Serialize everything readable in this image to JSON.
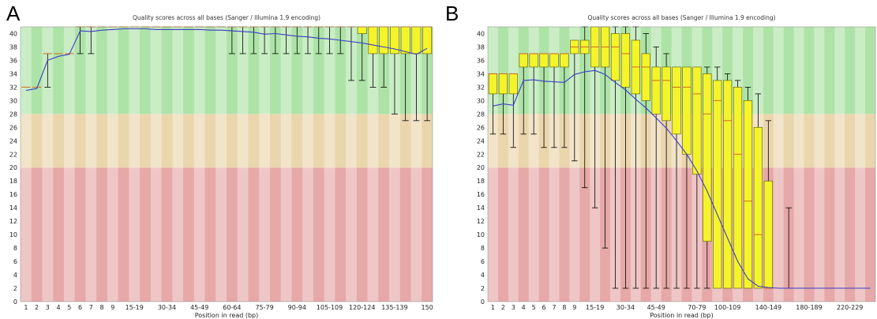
{
  "panels": [
    {
      "letter": "A",
      "chart_data": {
        "type": "box",
        "title": "Quality scores across all bases (Sanger / Illumina 1.9 encoding)",
        "xlabel": "Position in read (bp)",
        "ylabel": "",
        "ylim": [
          0,
          41
        ],
        "yticks": [
          0,
          2,
          4,
          6,
          8,
          10,
          12,
          14,
          16,
          18,
          20,
          22,
          24,
          26,
          28,
          30,
          32,
          34,
          36,
          38,
          40
        ],
        "quality_bands": [
          {
            "name": "poor",
            "from": 0,
            "to": 20,
            "color": "#e6a8a8"
          },
          {
            "name": "reasonable",
            "from": 20,
            "to": 28,
            "color": "#ead6ad"
          },
          {
            "name": "good",
            "from": 28,
            "to": 41,
            "color": "#aee3a8"
          }
        ],
        "x_tick_labels": [
          "1",
          "2",
          "3",
          "4",
          "5",
          "6",
          "7",
          "8",
          "9",
          "15-19",
          "30-34",
          "45-49",
          "60-64",
          "75-79",
          "90-94",
          "105-109",
          "120-124",
          "135-139",
          "150"
        ],
        "categories": [
          "1",
          "2",
          "3",
          "4",
          "5",
          "6",
          "7",
          "8",
          "9",
          "10-14",
          "15-19",
          "20-24",
          "25-29",
          "30-34",
          "35-39",
          "40-44",
          "45-49",
          "50-54",
          "55-59",
          "60-64",
          "65-69",
          "70-74",
          "75-79",
          "80-84",
          "85-89",
          "90-94",
          "95-99",
          "100-104",
          "105-109",
          "110-114",
          "115-119",
          "120-124",
          "125-129",
          "130-134",
          "135-139",
          "140-144",
          "145-149",
          "150"
        ],
        "mean": [
          31.5,
          31.8,
          36.0,
          36.6,
          36.9,
          40.4,
          40.3,
          40.5,
          40.6,
          40.7,
          40.7,
          40.7,
          40.6,
          40.6,
          40.6,
          40.6,
          40.6,
          40.5,
          40.5,
          40.4,
          40.3,
          40.2,
          39.9,
          40.0,
          39.8,
          39.6,
          39.5,
          39.3,
          39.2,
          39.0,
          38.8,
          38.6,
          38.3,
          38.0,
          37.7,
          37.3,
          36.9,
          37.8
        ],
        "q1": [
          32,
          32,
          37,
          37,
          37,
          41,
          41,
          41,
          41,
          41,
          41,
          41,
          41,
          41,
          41,
          41,
          41,
          41,
          41,
          41,
          41,
          41,
          41,
          41,
          41,
          41,
          41,
          41,
          41,
          41,
          41,
          40,
          37,
          37,
          37,
          37,
          37,
          37
        ],
        "median": [
          32,
          32,
          37,
          37,
          37,
          41,
          41,
          41,
          41,
          41,
          41,
          41,
          41,
          41,
          41,
          41,
          41,
          41,
          41,
          41,
          41,
          41,
          41,
          41,
          41,
          41,
          41,
          41,
          41,
          41,
          41,
          41,
          41,
          41,
          41,
          41,
          41,
          41
        ],
        "q3": [
          32,
          32,
          37,
          37,
          37,
          41,
          41,
          41,
          41,
          41,
          41,
          41,
          41,
          41,
          41,
          41,
          41,
          41,
          41,
          41,
          41,
          41,
          41,
          41,
          41,
          41,
          41,
          41,
          41,
          41,
          41,
          41,
          41,
          41,
          41,
          41,
          41,
          41
        ],
        "low": [
          32,
          32,
          32,
          37,
          37,
          37,
          37,
          41,
          41,
          41,
          41,
          41,
          41,
          41,
          41,
          41,
          41,
          41,
          41,
          37,
          37,
          37,
          37,
          37,
          37,
          37,
          37,
          37,
          37,
          37,
          33,
          33,
          32,
          32,
          28,
          27,
          27,
          27
        ],
        "high": [
          32,
          32,
          37,
          37,
          37,
          41,
          41,
          41,
          41,
          41,
          41,
          41,
          41,
          41,
          41,
          41,
          41,
          41,
          41,
          41,
          41,
          41,
          41,
          41,
          41,
          41,
          41,
          41,
          41,
          41,
          41,
          41,
          41,
          41,
          41,
          41,
          41,
          41
        ]
      }
    },
    {
      "letter": "B",
      "chart_data": {
        "type": "box",
        "title": "Quality scores across all bases (Sanger / Illumina 1.9 encoding)",
        "xlabel": "Position in read (bp)",
        "ylabel": "",
        "ylim": [
          0,
          41
        ],
        "yticks": [
          0,
          2,
          4,
          6,
          8,
          10,
          12,
          14,
          16,
          18,
          20,
          22,
          24,
          26,
          28,
          30,
          32,
          34,
          36,
          38,
          40
        ],
        "quality_bands": [
          {
            "name": "poor",
            "from": 0,
            "to": 20,
            "color": "#e6a8a8"
          },
          {
            "name": "reasonable",
            "from": 20,
            "to": 28,
            "color": "#ead6ad"
          },
          {
            "name": "good",
            "from": 28,
            "to": 41,
            "color": "#aee3a8"
          }
        ],
        "x_tick_labels": [
          "1",
          "2",
          "3",
          "4",
          "5",
          "6",
          "7",
          "8",
          "9",
          "15-19",
          "30-34",
          "45-49",
          "70-79",
          "100-109",
          "140-149",
          "180-189",
          "220-229"
        ],
        "categories": [
          "1",
          "2",
          "3",
          "4",
          "5",
          "6",
          "7",
          "8",
          "9",
          "10-14",
          "15-19",
          "20-24",
          "25-29",
          "30-34",
          "35-39",
          "40-44",
          "45-49",
          "50-54",
          "55-59",
          "60-69",
          "70-79",
          "80-89",
          "90-99",
          "100-109",
          "110-119",
          "120-129",
          "130-139",
          "140-149",
          "150-159",
          "160-169",
          "170-179",
          "180-189",
          "190-199",
          "200-209",
          "210-219",
          "220-229",
          "230-239",
          "240-251"
        ],
        "mean": [
          29.2,
          29.5,
          29.3,
          33.0,
          33.1,
          32.9,
          32.8,
          32.7,
          33.9,
          34.3,
          34.5,
          33.9,
          32.7,
          31.6,
          30.2,
          28.9,
          27.4,
          25.9,
          24.0,
          22.0,
          19.5,
          16.5,
          13.0,
          9.5,
          6.0,
          3.4,
          2.3,
          2.1,
          2.0,
          2.0,
          2.0,
          2.0,
          2.0,
          2.0,
          2.0,
          2.0,
          2.0,
          2.0
        ],
        "q1": [
          31,
          31,
          31,
          35,
          35,
          35,
          35,
          35,
          37,
          37,
          35,
          35,
          33,
          32,
          31,
          30,
          28,
          27,
          25,
          22,
          19,
          9,
          2,
          2,
          2,
          2,
          2,
          2,
          null,
          null,
          null,
          null,
          null,
          null,
          null,
          null,
          null,
          null
        ],
        "median": [
          34,
          34,
          34,
          37,
          37,
          37,
          37,
          37,
          38,
          38,
          38,
          38,
          38,
          37,
          35,
          35,
          33,
          33,
          32,
          32,
          31,
          28,
          30,
          27,
          22,
          15,
          10,
          2,
          null,
          null,
          null,
          null,
          null,
          null,
          null,
          null,
          null,
          null
        ],
        "q3": [
          34,
          34,
          34,
          37,
          37,
          37,
          37,
          37,
          39,
          39,
          41,
          41,
          40,
          40,
          39,
          37,
          35,
          35,
          35,
          35,
          35,
          34,
          33,
          33,
          32,
          30,
          26,
          18,
          null,
          null,
          null,
          null,
          null,
          null,
          null,
          null,
          null,
          null
        ],
        "low": [
          25,
          25,
          23,
          25,
          25,
          23,
          23,
          23,
          21,
          17,
          14,
          8,
          2,
          2,
          2,
          2,
          2,
          2,
          2,
          2,
          2,
          2,
          2,
          2,
          2,
          2,
          2,
          2,
          null,
          null,
          null,
          null,
          null,
          null,
          null,
          null,
          null,
          null
        ],
        "high": [
          34,
          34,
          34,
          37,
          37,
          37,
          37,
          37,
          39,
          41,
          41,
          41,
          41,
          41,
          41,
          40,
          38,
          37,
          35,
          35,
          35,
          35,
          35,
          34,
          33,
          32,
          31,
          27,
          null,
          null,
          null,
          null,
          null,
          null,
          null,
          null,
          null,
          null
        ],
        "tail_whisker": {
          "category": "160-169",
          "low": 2,
          "high": 14
        }
      }
    }
  ],
  "colors": {
    "box": "#f4f42a",
    "box_stroke": "#555500",
    "median": "#d2691e",
    "mean": "#3c3cc8",
    "whisker": "#000000",
    "stripe_light": "rgba(255,255,255,0.35)"
  }
}
